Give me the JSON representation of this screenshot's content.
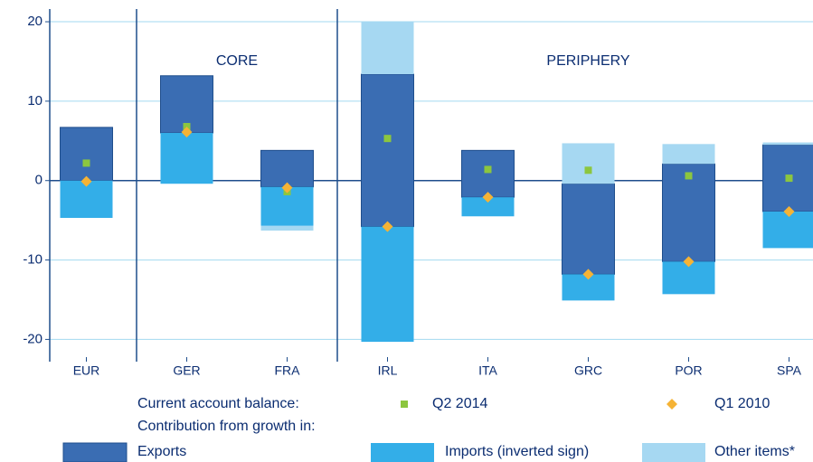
{
  "chart_data": {
    "type": "range-bar",
    "categories": [
      "EUR",
      "GER",
      "FRA",
      "IRL",
      "ITA",
      "GRC",
      "POR",
      "SPA"
    ],
    "groups": [
      {
        "label": "CORE",
        "members": [
          "GER",
          "FRA"
        ]
      },
      {
        "label": "PERIPHERY",
        "members": [
          "IRL",
          "ITA",
          "GRC",
          "POR",
          "SPA"
        ]
      }
    ],
    "ylim": [
      -22.8,
      21.6
    ],
    "yticks": [
      -20,
      -10,
      0,
      10,
      20
    ],
    "grid": true,
    "legend_title_points": "Current account balance:",
    "legend_title_bars": "Contribution from growth in:",
    "series": [
      {
        "name": "Exports",
        "color": "#3a6db3",
        "low": [
          0,
          6.0,
          -0.8,
          -5.8,
          -2.1,
          -11.8,
          -10.2,
          -3.9
        ],
        "high": [
          6.7,
          13.2,
          3.8,
          13.4,
          3.8,
          -0.4,
          2.1,
          4.5
        ]
      },
      {
        "name": "Imports (inverted sign)",
        "color": "#33aee8",
        "low": [
          -4.7,
          -0.4,
          -5.7,
          -20.3,
          -4.5,
          -15.1,
          -14.3,
          -8.5
        ],
        "high": [
          0,
          6.0,
          -0.8,
          -5.8,
          -2.1,
          -11.8,
          -10.2,
          -3.9
        ]
      },
      {
        "name": "Other items*",
        "color": "#a6d8f2",
        "low": [
          null,
          null,
          -6.3,
          13.4,
          null,
          -0.4,
          2.1,
          4.5
        ],
        "high": [
          null,
          null,
          -5.7,
          20.0,
          null,
          4.7,
          4.6,
          4.8
        ]
      }
    ],
    "points": [
      {
        "name": "Q2 2014",
        "color": "#8cc63f",
        "marker": "square",
        "values": [
          2.2,
          6.8,
          -1.4,
          5.3,
          1.4,
          1.3,
          0.6,
          0.3
        ]
      },
      {
        "name": "Q1 2010",
        "color": "#f5b335",
        "marker": "diamond",
        "values": [
          -0.1,
          6.1,
          -0.9,
          -5.8,
          -2.1,
          -11.8,
          -10.2,
          -3.9
        ]
      }
    ]
  }
}
